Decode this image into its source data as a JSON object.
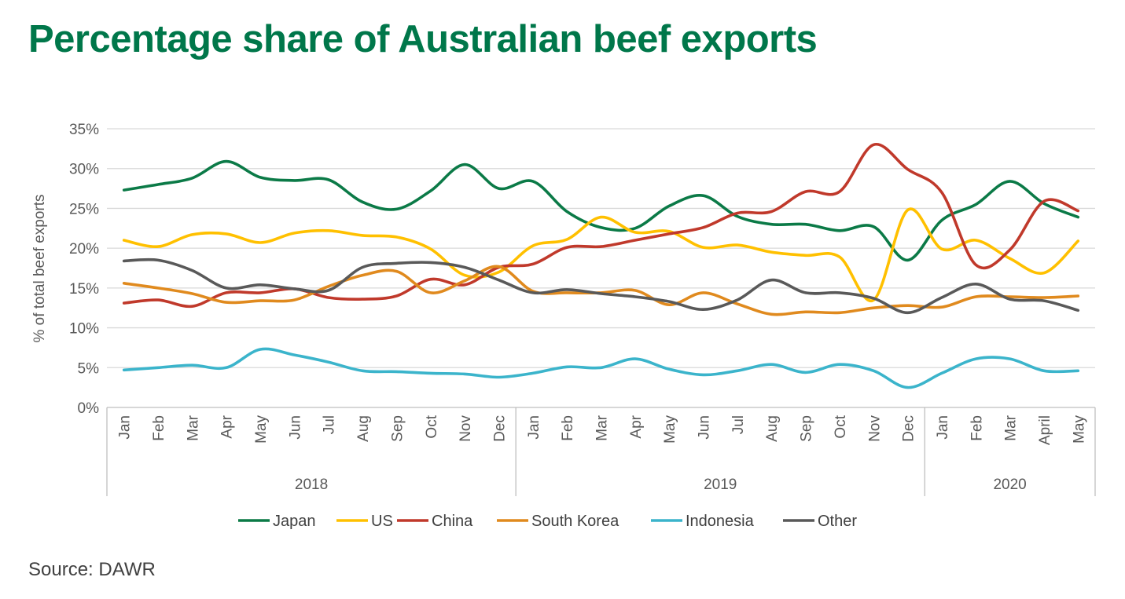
{
  "title": "Percentage share of Australian beef exports",
  "source": "Source: DAWR",
  "chart_data": {
    "type": "line",
    "ylabel": "% of total beef exports",
    "ylim": [
      0,
      35
    ],
    "y_ticks": [
      "0%",
      "5%",
      "10%",
      "15%",
      "20%",
      "25%",
      "30%",
      "35%"
    ],
    "y_tick_values": [
      0,
      5,
      10,
      15,
      20,
      25,
      30,
      35
    ],
    "grid": true,
    "legend_position": "bottom",
    "categories": [
      "Jan",
      "Feb",
      "Mar",
      "Apr",
      "May",
      "Jun",
      "Jul",
      "Aug",
      "Sep",
      "Oct",
      "Nov",
      "Dec",
      "Jan",
      "Feb",
      "Mar",
      "Apr",
      "May",
      "Jun",
      "Jul",
      "Aug",
      "Sep",
      "Oct",
      "Nov",
      "Dec",
      "Jan",
      "Feb",
      "Mar",
      "April",
      "May"
    ],
    "year_groups": [
      {
        "label": "2018",
        "count": 12
      },
      {
        "label": "2019",
        "count": 12
      },
      {
        "label": "2020",
        "count": 5
      }
    ],
    "series": [
      {
        "name": "Japan",
        "color": "#0B7A47",
        "values": [
          27.3,
          28.0,
          28.8,
          30.9,
          28.9,
          28.5,
          28.6,
          25.8,
          24.9,
          27.2,
          30.5,
          27.5,
          28.4,
          24.6,
          22.6,
          22.5,
          25.3,
          26.6,
          24.0,
          23.0,
          23.0,
          22.2,
          22.7,
          18.5,
          23.5,
          25.5,
          28.4,
          25.6,
          23.9
        ]
      },
      {
        "name": "US",
        "color": "#FFC000",
        "values": [
          21.0,
          20.2,
          21.7,
          21.8,
          20.7,
          21.9,
          22.2,
          21.6,
          21.4,
          19.9,
          16.6,
          17.0,
          20.3,
          21.1,
          23.9,
          22.0,
          22.1,
          20.1,
          20.4,
          19.5,
          19.1,
          18.9,
          13.5,
          24.8,
          19.9,
          21.0,
          18.7,
          16.9,
          20.9
        ]
      },
      {
        "name": "China",
        "color": "#C0392B",
        "values": [
          13.1,
          13.5,
          12.7,
          14.4,
          14.4,
          14.9,
          13.8,
          13.6,
          14.0,
          16.1,
          15.4,
          17.6,
          18.0,
          20.1,
          20.2,
          21.0,
          21.8,
          22.6,
          24.4,
          24.6,
          27.1,
          27.1,
          33.0,
          29.9,
          27.0,
          17.9,
          19.8,
          25.9,
          24.7
        ]
      },
      {
        "name": "South Korea",
        "color": "#E08A1E",
        "values": [
          15.6,
          15.0,
          14.3,
          13.2,
          13.4,
          13.5,
          15.2,
          16.6,
          17.1,
          14.4,
          15.9,
          17.7,
          14.6,
          14.4,
          14.4,
          14.7,
          12.9,
          14.4,
          13.0,
          11.7,
          12.0,
          11.9,
          12.5,
          12.8,
          12.6,
          13.9,
          13.9,
          13.8,
          14.0
        ]
      },
      {
        "name": "Indonesia",
        "color": "#3BB4CB",
        "values": [
          4.7,
          5.0,
          5.3,
          5.0,
          7.3,
          6.6,
          5.7,
          4.6,
          4.5,
          4.3,
          4.2,
          3.8,
          4.3,
          5.1,
          5.0,
          6.1,
          4.8,
          4.1,
          4.6,
          5.4,
          4.4,
          5.4,
          4.6,
          2.5,
          4.3,
          6.1,
          6.1,
          4.6,
          4.6
        ]
      },
      {
        "name": "Other",
        "color": "#595959",
        "values": [
          18.4,
          18.5,
          17.2,
          15.0,
          15.4,
          14.9,
          14.7,
          17.6,
          18.1,
          18.2,
          17.6,
          16.0,
          14.4,
          14.8,
          14.3,
          13.9,
          13.3,
          12.3,
          13.5,
          16.0,
          14.4,
          14.4,
          13.7,
          11.9,
          13.8,
          15.5,
          13.6,
          13.4,
          12.2
        ]
      }
    ]
  }
}
